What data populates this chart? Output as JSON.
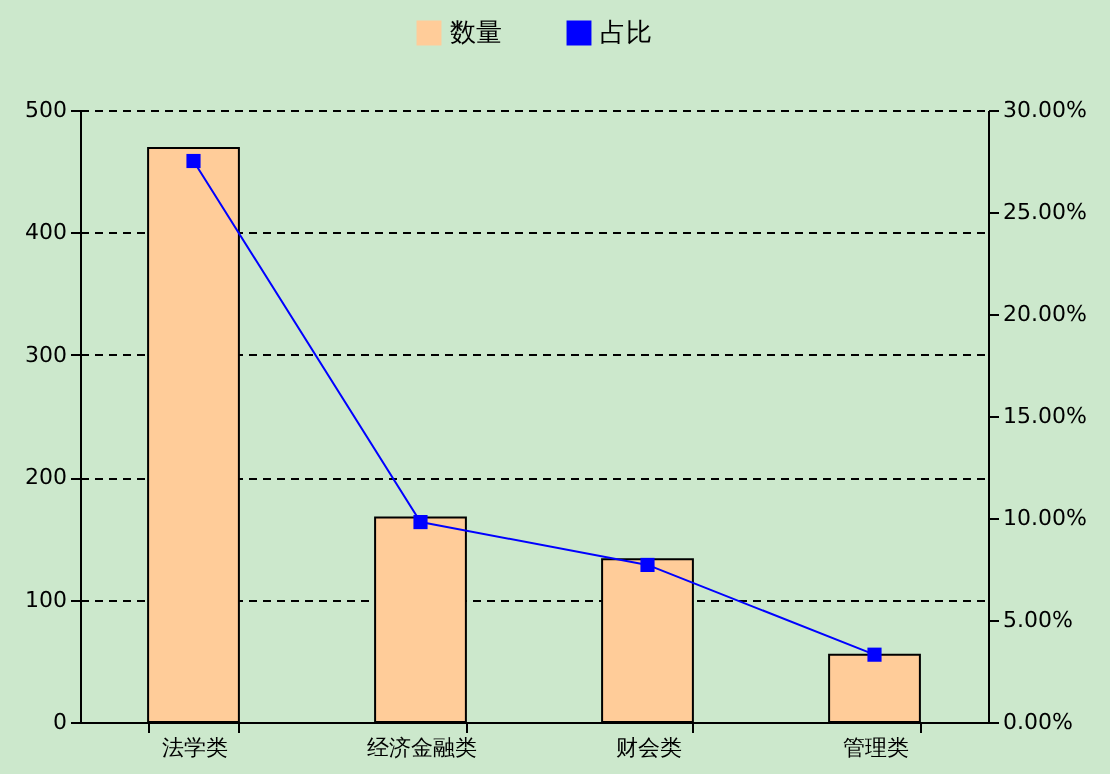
{
  "chart_data": {
    "type": "bar",
    "categories": [
      "法学类",
      "经济金融类",
      "财会类",
      "管理类"
    ],
    "series": [
      {
        "name": "数量",
        "color": "#ffcc99",
        "values": [
          469,
          167,
          133,
          55
        ]
      },
      {
        "name": "占比",
        "type": "line",
        "axis": "y2",
        "color": "#0000ff",
        "marker": "square",
        "values": [
          27.5,
          9.8,
          7.7,
          3.3
        ]
      }
    ],
    "ylim": [
      0,
      500
    ],
    "yticks": [
      0,
      100,
      200,
      300,
      400,
      500
    ],
    "y2lim": [
      0,
      30
    ],
    "y2ticks": [
      {
        "value": 0,
        "label": "0.00%"
      },
      {
        "value": 5,
        "label": "5.00%"
      },
      {
        "value": 10,
        "label": "10.00%"
      },
      {
        "value": 15,
        "label": "15.00%"
      },
      {
        "value": 20,
        "label": "20.00%"
      },
      {
        "value": 25,
        "label": "25.00%"
      },
      {
        "value": 30,
        "label": "30.00%"
      }
    ],
    "grid": "y",
    "legend": "top"
  }
}
